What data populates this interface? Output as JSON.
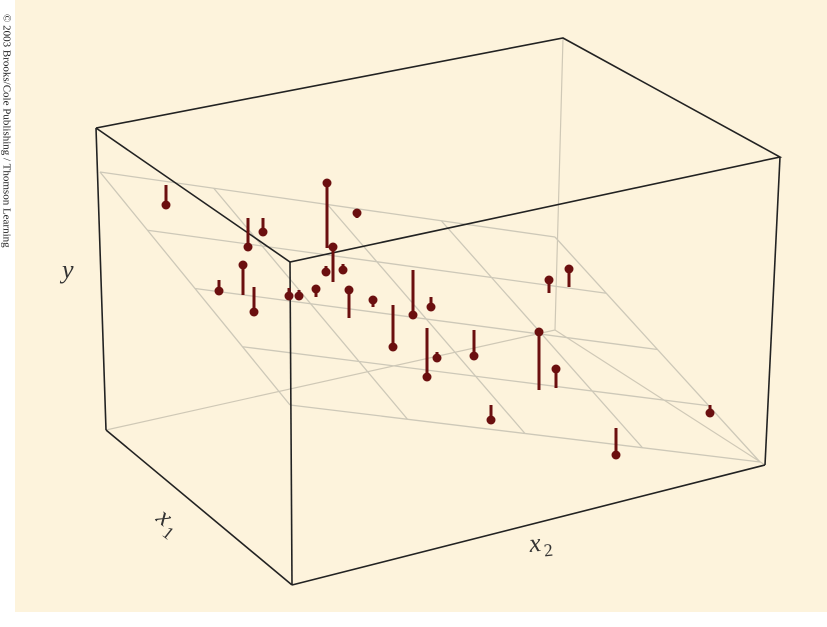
{
  "figure": {
    "copyright": "© 2003 Brooks/Cole Publishing / Thomson Learning",
    "y_label": "y",
    "x1_label": {
      "base": "x",
      "sub": "1"
    },
    "x2_label": {
      "base": "x",
      "sub": "2"
    }
  }
}
